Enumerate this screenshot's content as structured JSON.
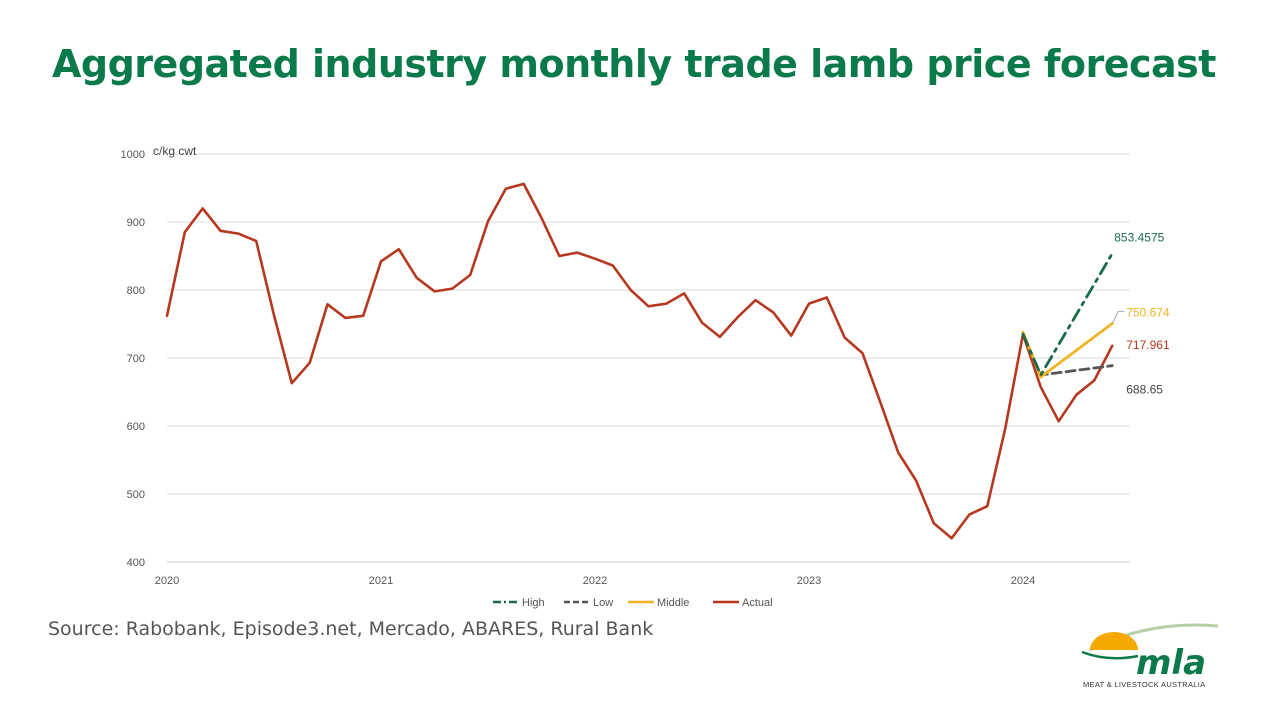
{
  "slide": {
    "title": "Aggregated industry monthly trade lamb price forecast",
    "source": "Source: Rabobank, Episode3.net, Mercado, ABARES, Rural Bank"
  },
  "logo": {
    "wordmark": "mla",
    "tagline": "MEAT & LIVESTOCK AUSTRALIA",
    "colors": {
      "sun": "#f5a800",
      "text": "#0b7a4a",
      "arc": "#b5cfa6"
    }
  },
  "chart_data": {
    "type": "line",
    "title": "",
    "xlabel": "",
    "ylabel": "c/kg cwt",
    "ylim": [
      400,
      1000
    ],
    "yticks": [
      400,
      500,
      600,
      700,
      800,
      900,
      1000
    ],
    "xlim": [
      2020,
      2024.5
    ],
    "xticks": [
      "2020",
      "2021",
      "2022",
      "2023",
      "2024"
    ],
    "grid": true,
    "legend": "bottom",
    "series": [
      {
        "name": "High",
        "color": "#1b6b4a",
        "dash": "dash-dot",
        "x": [
          2024.0,
          2024.083,
          2024.417
        ],
        "y": [
          735,
          675,
          853.4575
        ],
        "end_label": "853.4575"
      },
      {
        "name": "Low",
        "color": "#555555",
        "dash": "dash",
        "x": [
          2024.0,
          2024.083,
          2024.417
        ],
        "y": [
          735,
          675,
          688.65
        ],
        "end_label": "688.65"
      },
      {
        "name": "Middle",
        "color": "#f0b323",
        "dash": "solid",
        "x": [
          2024.0,
          2024.083,
          2024.417
        ],
        "y": [
          738,
          672,
          750.674
        ],
        "end_label": "750.674"
      },
      {
        "name": "Actual",
        "color": "#b5381f",
        "dash": "solid",
        "x": [
          2020.0,
          2020.083,
          2020.167,
          2020.25,
          2020.333,
          2020.417,
          2020.5,
          2020.583,
          2020.667,
          2020.75,
          2020.833,
          2020.917,
          2021.0,
          2021.083,
          2021.167,
          2021.25,
          2021.333,
          2021.417,
          2021.5,
          2021.583,
          2021.667,
          2021.75,
          2021.833,
          2021.917,
          2022.0,
          2022.083,
          2022.167,
          2022.25,
          2022.333,
          2022.417,
          2022.5,
          2022.583,
          2022.667,
          2022.75,
          2022.833,
          2022.917,
          2023.0,
          2023.083,
          2023.167,
          2023.25,
          2023.333,
          2023.417,
          2023.5,
          2023.583,
          2023.667,
          2023.75,
          2023.833,
          2023.917,
          2024.0,
          2024.083,
          2024.167,
          2024.25,
          2024.333,
          2024.417
        ],
        "y": [
          762,
          885,
          920,
          887,
          883,
          872,
          763,
          663,
          693,
          779,
          759,
          762,
          842,
          860,
          818,
          798,
          802,
          822,
          901,
          949,
          956,
          906,
          850,
          855,
          846,
          836,
          800,
          776,
          780,
          795,
          752,
          731,
          760,
          785,
          767,
          733,
          780,
          789,
          730,
          707,
          635,
          561,
          520,
          457,
          435,
          470,
          482,
          596,
          735,
          657,
          607,
          646,
          667,
          717.961
        ],
        "end_label": "717.961"
      }
    ]
  }
}
